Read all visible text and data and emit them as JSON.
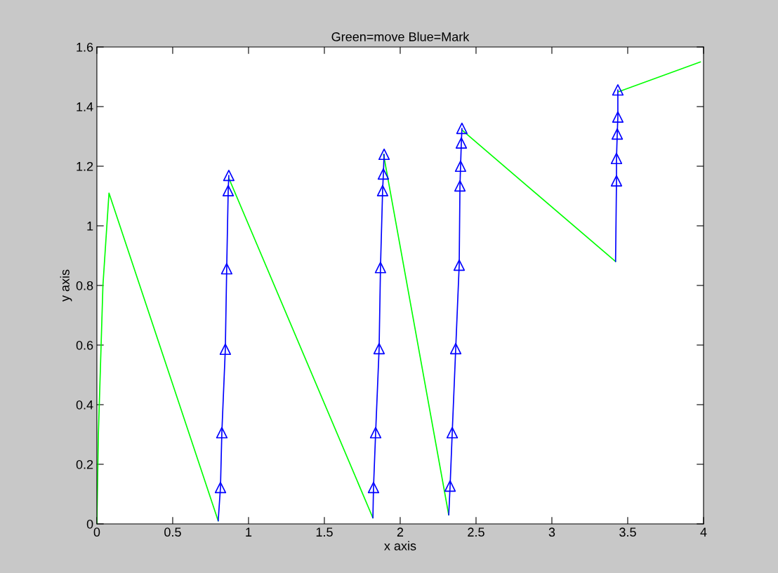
{
  "chart_data": {
    "type": "line",
    "title": "Green=move Blue=Mark",
    "xlabel": "x axis",
    "ylabel": "y axis",
    "xlim": [
      0,
      4
    ],
    "ylim": [
      0,
      1.6
    ],
    "xticks": [
      0,
      0.5,
      1,
      1.5,
      2,
      2.5,
      3,
      3.5,
      4
    ],
    "yticks": [
      0,
      0.2,
      0.4,
      0.6,
      0.8,
      1,
      1.2,
      1.4,
      1.6
    ],
    "grid": false,
    "series": [
      {
        "color": "#00ff00",
        "marker": "none",
        "x": [
          0,
          0.01,
          0.04,
          0.08,
          0.8
        ],
        "values": [
          0,
          0.3,
          0.8,
          1.11,
          0.01
        ]
      },
      {
        "color": "#00ff00",
        "marker": "none",
        "x": [
          0.87,
          1.82
        ],
        "values": [
          1.16,
          0.02
        ]
      },
      {
        "color": "#00ff00",
        "marker": "none",
        "x": [
          1.89,
          2.32
        ],
        "values": [
          1.24,
          0.03
        ]
      },
      {
        "color": "#00ff00",
        "marker": "none",
        "x": [
          2.41,
          3.42
        ],
        "values": [
          1.32,
          0.88
        ]
      },
      {
        "color": "#00ff00",
        "marker": "none",
        "x": [
          3.44,
          3.98
        ],
        "values": [
          1.45,
          1.55
        ]
      },
      {
        "color": "#0000ff",
        "marker": "none",
        "x": [
          0.8,
          0.815,
          0.824,
          0.847,
          0.856,
          0.866,
          0.87
        ],
        "values": [
          0.01,
          0.122,
          0.306,
          0.586,
          0.856,
          1.118,
          1.169
        ]
      },
      {
        "color": "#0000ff",
        "marker": "none",
        "x": [
          1.82,
          1.824,
          1.838,
          1.861,
          1.87,
          1.884,
          1.889,
          1.894
        ],
        "values": [
          0.02,
          0.122,
          0.306,
          0.588,
          0.86,
          1.118,
          1.174,
          1.24
        ]
      },
      {
        "color": "#0000ff",
        "marker": "none",
        "x": [
          2.32,
          2.329,
          2.343,
          2.366,
          2.389,
          2.394,
          2.398,
          2.403,
          2.407
        ],
        "values": [
          0.03,
          0.127,
          0.306,
          0.588,
          0.868,
          1.134,
          1.2,
          1.278,
          1.327
        ]
      },
      {
        "color": "#0000ff",
        "marker": "none",
        "x": [
          3.42,
          3.426,
          3.426,
          3.431,
          3.435,
          3.435
        ],
        "values": [
          0.88,
          1.151,
          1.226,
          1.308,
          1.365,
          1.456
        ]
      },
      {
        "type": "scatter",
        "color": "#0000ff",
        "marker": "triangle",
        "x": [
          0.815,
          0.824,
          0.847,
          0.856,
          0.866,
          0.87,
          1.824,
          1.838,
          1.861,
          1.87,
          1.884,
          1.889,
          1.894,
          2.329,
          2.343,
          2.366,
          2.389,
          2.394,
          2.398,
          2.403,
          2.407,
          3.426,
          3.426,
          3.431,
          3.435,
          3.435
        ],
        "values": [
          0.122,
          0.306,
          0.586,
          0.856,
          1.118,
          1.169,
          0.122,
          0.306,
          0.588,
          0.86,
          1.118,
          1.174,
          1.24,
          0.127,
          0.306,
          0.588,
          0.868,
          1.134,
          1.2,
          1.278,
          1.327,
          1.151,
          1.226,
          1.308,
          1.365,
          1.456
        ]
      }
    ]
  }
}
